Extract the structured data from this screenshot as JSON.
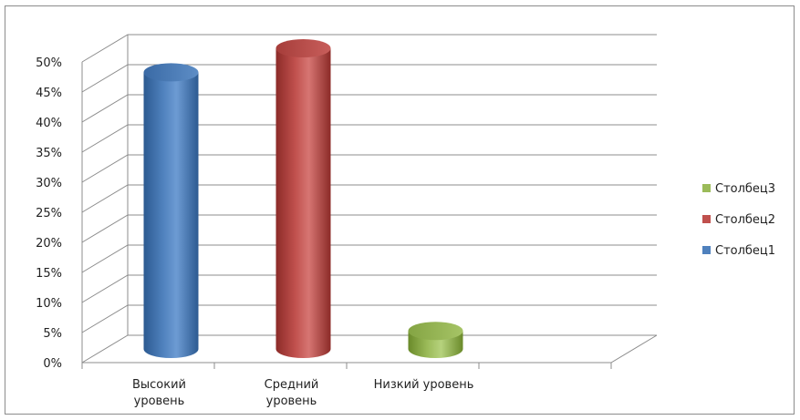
{
  "chart_data": {
    "type": "bar",
    "title": "",
    "xlabel": "",
    "ylabel": "",
    "ylim": [
      0,
      50
    ],
    "y_ticks": [
      "0%",
      "5%",
      "10%",
      "15%",
      "20%",
      "25%",
      "30%",
      "35%",
      "40%",
      "45%",
      "50%"
    ],
    "categories": [
      [
        "Высокий",
        "уровень"
      ],
      [
        "Средний",
        "уровень"
      ],
      [
        "Низкий уровень"
      ]
    ],
    "series": [
      {
        "name": "Столбец1",
        "color": "#4f81bd",
        "values": [
          46,
          null,
          null
        ]
      },
      {
        "name": "Столбец2",
        "color": "#c0504d",
        "values": [
          null,
          50,
          null
        ]
      },
      {
        "name": "Столбец3",
        "color": "#9bbb59",
        "values": [
          null,
          null,
          3
        ]
      }
    ],
    "legend": {
      "position": "right",
      "order": [
        "Столбец3",
        "Столбец2",
        "Столбец1"
      ]
    },
    "grid": true,
    "shape": "cylinder-3d"
  }
}
